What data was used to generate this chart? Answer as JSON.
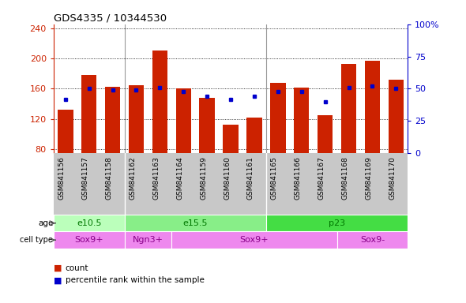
{
  "title": "GDS4335 / 10344530",
  "samples": [
    "GSM841156",
    "GSM841157",
    "GSM841158",
    "GSM841162",
    "GSM841163",
    "GSM841164",
    "GSM841159",
    "GSM841160",
    "GSM841161",
    "GSM841165",
    "GSM841166",
    "GSM841167",
    "GSM841168",
    "GSM841169",
    "GSM841170"
  ],
  "counts": [
    132,
    178,
    163,
    165,
    210,
    160,
    148,
    113,
    122,
    168,
    162,
    125,
    193,
    197,
    172
  ],
  "percentiles": [
    42,
    50,
    49,
    49,
    51,
    48,
    44,
    42,
    44,
    48,
    48,
    40,
    51,
    52,
    50
  ],
  "ylim_left": [
    75,
    245
  ],
  "ylim_right": [
    0,
    100
  ],
  "yticks_left": [
    80,
    120,
    160,
    200,
    240
  ],
  "yticks_right": [
    0,
    25,
    50,
    75,
    100
  ],
  "bar_color": "#cc2200",
  "dot_color": "#0000cc",
  "age_groups": [
    {
      "label": "e10.5",
      "start": 0,
      "end": 3,
      "color": "#bbffbb"
    },
    {
      "label": "e15.5",
      "start": 3,
      "end": 9,
      "color": "#88ee88"
    },
    {
      "label": "p23",
      "start": 9,
      "end": 15,
      "color": "#44dd44"
    }
  ],
  "cell_groups": [
    {
      "label": "Sox9+",
      "start": 0,
      "end": 3,
      "color": "#ee88ee"
    },
    {
      "label": "Ngn3+",
      "start": 3,
      "end": 5,
      "color": "#ee88ee"
    },
    {
      "label": "Sox9+",
      "start": 5,
      "end": 12,
      "color": "#ee88ee"
    },
    {
      "label": "Sox9-",
      "start": 12,
      "end": 15,
      "color": "#ee88ee"
    }
  ],
  "legend_count_color": "#cc2200",
  "legend_dot_color": "#0000cc",
  "xtick_bg": "#c8c8c8",
  "plot_bg": "#ffffff",
  "tick_color_left": "#cc2200",
  "tick_color_right": "#0000cc",
  "age_text_color": "#007700",
  "cell_text_color": "#880088",
  "group_boundaries": [
    3,
    9
  ],
  "group_sep_color": "#999999"
}
